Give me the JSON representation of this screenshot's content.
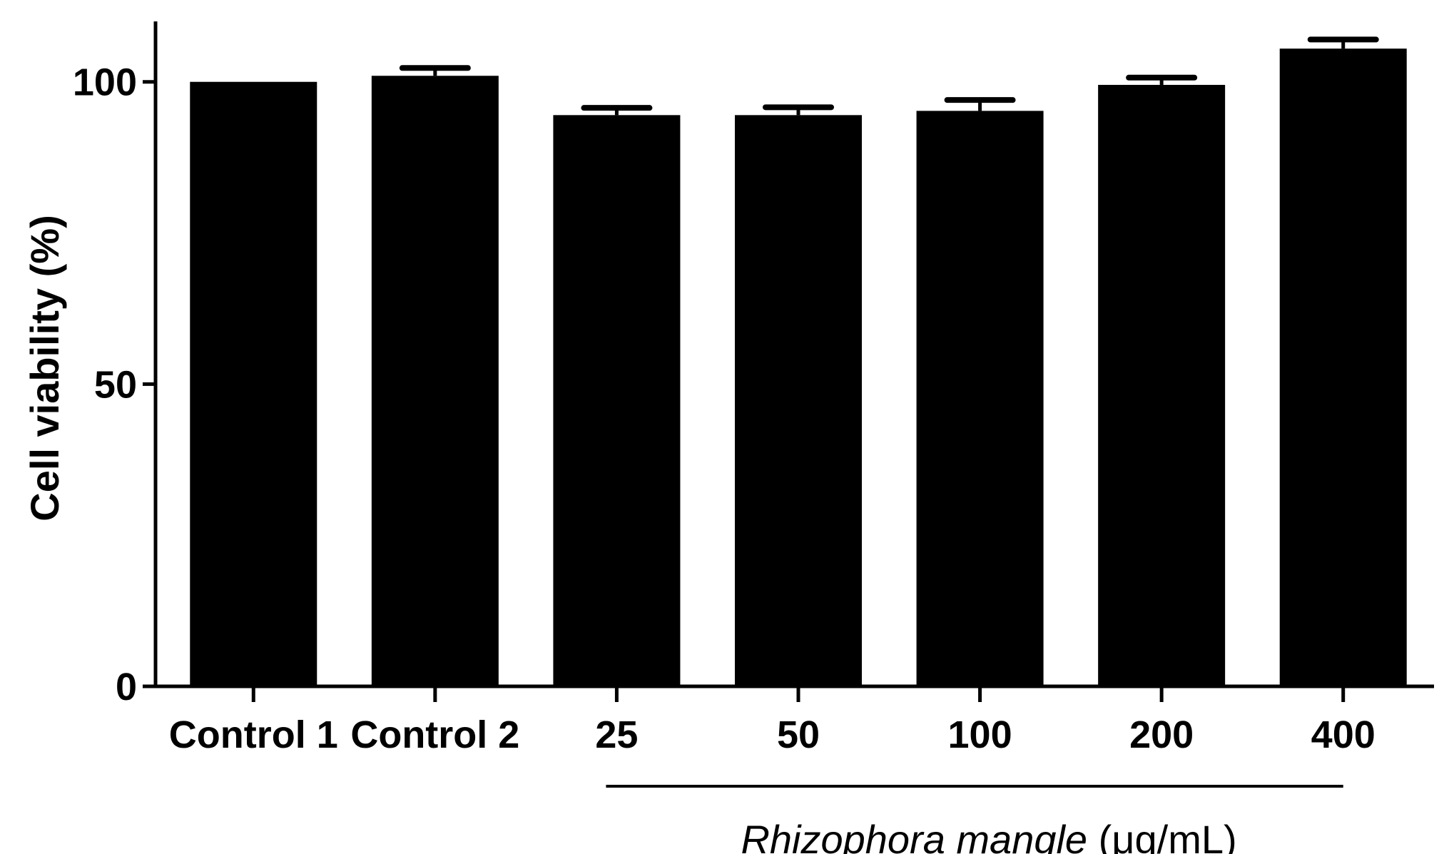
{
  "chart_data": {
    "type": "bar",
    "categories": [
      "Control 1",
      "Control 2",
      "25",
      "50",
      "100",
      "200",
      "400"
    ],
    "values": [
      100,
      101,
      94.5,
      94.5,
      95.2,
      99.5,
      105.5
    ],
    "errors": [
      0,
      1.3,
      1.2,
      1.3,
      1.8,
      1.2,
      1.5
    ],
    "title": "",
    "xlabel": "",
    "ylabel": "Cell viability (%)",
    "ylim": [
      0,
      110
    ],
    "yticks": [
      0,
      50,
      100
    ],
    "group_label": {
      "italic": "Rhizophora mangle",
      "unit": " (μg/mL)",
      "from_category": "25",
      "to_category": "400"
    },
    "bar_color": "#000000",
    "grid": false,
    "legend": "none"
  }
}
